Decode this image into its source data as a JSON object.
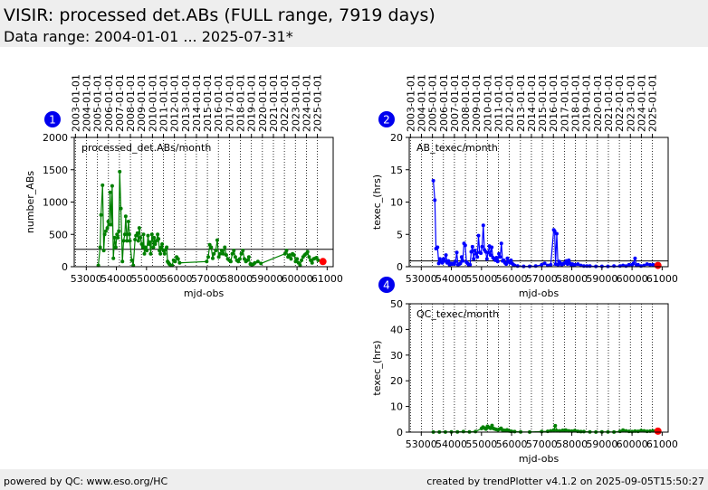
{
  "header": {
    "title": "VISIR: processed det.ABs (FULL range, 7919 days)",
    "subtitle": "Data range: 2004-01-01 ... 2025-07-31*"
  },
  "footer": {
    "left": "powered by QC: www.eso.org/HC",
    "right": "created by trendPlotter v4.1.2 on 2025-09-05T15:50:27"
  },
  "colors": {
    "badge": "#0000ee",
    "processed": "#008000",
    "abtexec": "#0000ff",
    "qctexec": "#008000",
    "latest": "#ff0000",
    "header_bg": "#eeeeee"
  },
  "chart_data": [
    {
      "id": 1,
      "badge": "1",
      "type": "line",
      "label": "processed_det.ABs/month",
      "xlabel": "mjd-obs",
      "ylabel": "number_ABs",
      "xlim": [
        52600,
        61200
      ],
      "ylim": [
        0,
        2000
      ],
      "xticks": [
        53000,
        54000,
        55000,
        56000,
        57000,
        58000,
        59000,
        60000,
        61000
      ],
      "yticks": [
        0,
        500,
        1000,
        1500,
        2000
      ],
      "top_ticks": [
        "2003-01-01",
        "2004-01-01",
        "2005-01-01",
        "2006-01-01",
        "2007-01-01",
        "2008-01-01",
        "2009-01-01",
        "2010-01-01",
        "2011-01-01",
        "2012-01-01",
        "2013-01-01",
        "2014-01-01",
        "2015-01-01",
        "2016-01-01",
        "2017-01-01",
        "2018-01-01",
        "2019-01-01",
        "2020-01-01",
        "2021-01-01",
        "2022-01-01",
        "2023-01-01",
        "2024-01-01",
        "2025-01-01"
      ],
      "top_ticks_mjd": [
        52640,
        53005,
        53371,
        53736,
        54101,
        54466,
        54832,
        55197,
        55562,
        55927,
        56293,
        56658,
        57023,
        57388,
        57754,
        58119,
        58484,
        58849,
        59215,
        59580,
        59945,
        60310,
        60676
      ],
      "hline": 270,
      "series": [
        {
          "x": [
            53400,
            53460,
            53490,
            53540,
            53580,
            53610,
            53650,
            53700,
            53730,
            53760,
            53790,
            53830,
            53860,
            53900,
            53940,
            53980,
            54020,
            54050,
            54080,
            54110,
            54150,
            54200,
            54240,
            54280,
            54310,
            54350,
            54400,
            54430,
            54450,
            54510,
            54560,
            54620,
            54650,
            54700,
            54730,
            54760,
            54800,
            54840,
            54880,
            54900,
            54930,
            54960,
            55010,
            55050,
            55080,
            55110,
            55140,
            55180,
            55230,
            55250,
            55290,
            55330,
            55370,
            55400,
            55430,
            55460,
            55490,
            55520,
            55560,
            55600,
            55630,
            55670,
            55700,
            55730,
            55760,
            55800,
            55850,
            55900,
            55950,
            56000,
            56050,
            56100,
            57000,
            57050,
            57100,
            57150,
            57200,
            57240,
            57300,
            57350,
            57400,
            57450,
            57500,
            57550,
            57600,
            57650,
            57700,
            57750,
            57800,
            57850,
            57900,
            57950,
            58000,
            58050,
            58100,
            58150,
            58200,
            58250,
            58300,
            58350,
            58400,
            58450,
            58500,
            58550,
            58600,
            58700,
            58800,
            59600,
            59650,
            59700,
            59750,
            59800,
            59850,
            59900,
            59950,
            60000,
            60050,
            60100,
            60150,
            60200,
            60250,
            60300,
            60350,
            60400,
            60450,
            60500,
            60550,
            60600,
            60650,
            60700
          ],
          "y": [
            20,
            300,
            800,
            1260,
            250,
            500,
            550,
            600,
            700,
            650,
            1150,
            650,
            1250,
            130,
            450,
            300,
            500,
            450,
            550,
            1470,
            900,
            80,
            400,
            500,
            780,
            400,
            700,
            500,
            400,
            100,
            20,
            420,
            480,
            520,
            400,
            600,
            450,
            350,
            300,
            500,
            200,
            300,
            250,
            480,
            350,
            380,
            200,
            500,
            300,
            450,
            350,
            400,
            500,
            430,
            250,
            200,
            300,
            350,
            250,
            200,
            260,
            300,
            80,
            60,
            40,
            20,
            20,
            100,
            80,
            150,
            120,
            60,
            80,
            150,
            340,
            300,
            130,
            200,
            250,
            410,
            150,
            200,
            250,
            200,
            300,
            180,
            120,
            100,
            80,
            200,
            250,
            150,
            100,
            80,
            120,
            200,
            250,
            120,
            80,
            100,
            150,
            40,
            30,
            40,
            60,
            80,
            50,
            200,
            250,
            150,
            180,
            120,
            200,
            180,
            80,
            120,
            60,
            20,
            100,
            150,
            180,
            200,
            230,
            150,
            100,
            60,
            120,
            130,
            140,
            100
          ],
          "color": "#008000"
        }
      ],
      "latest": [
        60860,
        80
      ]
    },
    {
      "id": 2,
      "badge": "2",
      "type": "line",
      "label": "AB_texec/month",
      "xlabel": "mjd-obs",
      "ylabel": "texec_(hrs)",
      "xlim": [
        52600,
        61200
      ],
      "ylim": [
        0,
        20
      ],
      "xticks": [
        53000,
        54000,
        55000,
        56000,
        57000,
        58000,
        59000,
        60000,
        61000
      ],
      "yticks": [
        0,
        5,
        10,
        15,
        20
      ],
      "top_ticks": [
        "2003-01-01",
        "2004-01-01",
        "2005-01-01",
        "2006-01-01",
        "2007-01-01",
        "2008-01-01",
        "2009-01-01",
        "2010-01-01",
        "2011-01-01",
        "2012-01-01",
        "2013-01-01",
        "2014-01-01",
        "2015-01-01",
        "2016-01-01",
        "2017-01-01",
        "2018-01-01",
        "2019-01-01",
        "2020-01-01",
        "2021-01-01",
        "2022-01-01",
        "2023-01-01",
        "2024-01-01",
        "2025-01-01"
      ],
      "top_ticks_mjd": [
        52640,
        53005,
        53371,
        53736,
        54101,
        54466,
        54832,
        55197,
        55562,
        55927,
        56293,
        56658,
        57023,
        57388,
        57754,
        58119,
        58484,
        58849,
        59215,
        59580,
        59945,
        60310,
        60676
      ],
      "hline": 0.9,
      "series": [
        {
          "x": [
            53400,
            53450,
            53490,
            53540,
            53580,
            53620,
            53660,
            53700,
            53740,
            53780,
            53820,
            53860,
            53900,
            53940,
            53980,
            54020,
            54060,
            54100,
            54140,
            54180,
            54220,
            54260,
            54300,
            54340,
            54380,
            54420,
            54460,
            54500,
            54540,
            54580,
            54620,
            54660,
            54700,
            54740,
            54780,
            54820,
            54860,
            54900,
            54940,
            54980,
            55020,
            55060,
            55100,
            55140,
            55180,
            55220,
            55260,
            55300,
            55340,
            55380,
            55420,
            55460,
            55500,
            55540,
            55580,
            55620,
            55660,
            55700,
            55740,
            55780,
            55820,
            55860,
            55900,
            55940,
            55980,
            56020,
            56060,
            56100,
            56200,
            56400,
            56600,
            56800,
            57000,
            57100,
            57200,
            57300,
            57400,
            57430,
            57460,
            57500,
            57540,
            57580,
            57620,
            57660,
            57700,
            57740,
            57780,
            57820,
            57860,
            57900,
            57940,
            57980,
            58020,
            58060,
            58100,
            58200,
            58300,
            58400,
            58500,
            58600,
            58800,
            59000,
            59200,
            59400,
            59600,
            59700,
            59800,
            59900,
            60000,
            60050,
            60100,
            60150,
            60200,
            60300,
            60400,
            60500,
            60600,
            60700
          ],
          "y": [
            13.3,
            10.3,
            2.8,
            3.0,
            0.5,
            1.2,
            0.8,
            0.6,
            1.2,
            0.9,
            1.8,
            0.6,
            0.9,
            0.3,
            0.5,
            0.4,
            0.5,
            0.4,
            0.8,
            2.2,
            0.3,
            0.4,
            0.5,
            1.5,
            0.9,
            3.6,
            3.3,
            0.7,
            0.5,
            0.2,
            0.3,
            2.3,
            3.1,
            1.2,
            2.5,
            2.0,
            1.5,
            4.8,
            2.2,
            2.1,
            3.1,
            6.4,
            2.6,
            2.3,
            1.2,
            2.2,
            3.2,
            1.8,
            3.0,
            1.4,
            1.2,
            1.0,
            1.4,
            0.8,
            2.0,
            1.5,
            3.6,
            0.9,
            1.0,
            0.6,
            0.4,
            1.3,
            0.8,
            0.6,
            1.0,
            0.5,
            0.3,
            0.2,
            0.1,
            0.05,
            0.05,
            0.1,
            0.3,
            0.5,
            0.2,
            0.3,
            5.7,
            5.5,
            0.4,
            5.1,
            0.3,
            0.8,
            0.5,
            0.3,
            0.4,
            0.5,
            0.6,
            0.9,
            0.4,
            1.0,
            0.5,
            0.3,
            0.4,
            0.2,
            0.3,
            0.4,
            0.2,
            0.1,
            0.1,
            0.1,
            0.05,
            0.05,
            0.05,
            0.1,
            0.1,
            0.2,
            0.1,
            0.3,
            0.3,
            0.5,
            1.3,
            0.2,
            0.3,
            0.1,
            0.2,
            0.4,
            0.3,
            0.3
          ],
          "color": "#0000ff"
        }
      ],
      "latest": [
        60860,
        0.2
      ]
    },
    {
      "id": 4,
      "badge": "4",
      "type": "line",
      "label": "QC_texec/month",
      "xlabel": "mjd-obs",
      "ylabel": "texec_(hrs)",
      "xlim": [
        52600,
        61200
      ],
      "ylim": [
        0,
        50
      ],
      "xticks": [
        53000,
        54000,
        55000,
        56000,
        57000,
        58000,
        59000,
        60000,
        61000
      ],
      "yticks": [
        0,
        10,
        20,
        30,
        40,
        50
      ],
      "top_ticks": [],
      "top_ticks_mjd": [
        52640,
        53005,
        53371,
        53736,
        54101,
        54466,
        54832,
        55197,
        55562,
        55927,
        56293,
        56658,
        57023,
        57388,
        57754,
        58119,
        58484,
        58849,
        59215,
        59580,
        59945,
        60310,
        60676
      ],
      "hline": null,
      "series": [
        {
          "x": [
            53400,
            53600,
            53800,
            54000,
            54200,
            54400,
            54600,
            54800,
            55000,
            55050,
            55100,
            55150,
            55200,
            55250,
            55300,
            55350,
            55400,
            55450,
            55500,
            55550,
            55600,
            55650,
            55700,
            55750,
            55800,
            55850,
            55900,
            55950,
            56000,
            56100,
            56300,
            56600,
            57000,
            57200,
            57300,
            57400,
            57450,
            57500,
            57600,
            57700,
            57800,
            57900,
            58000,
            58100,
            58200,
            58300,
            58400,
            58600,
            58800,
            59000,
            59200,
            59400,
            59600,
            59700,
            59800,
            59900,
            60000,
            60100,
            60200,
            60300,
            60400,
            60500,
            60600,
            60700
          ],
          "y": [
            0.05,
            0.05,
            0.05,
            0.1,
            0.1,
            0.2,
            0.1,
            0.2,
            1.4,
            2.0,
            1.6,
            1.2,
            2.3,
            1.8,
            1.5,
            2.6,
            1.4,
            1.2,
            1.0,
            0.9,
            1.2,
            1.5,
            0.8,
            0.7,
            0.6,
            0.9,
            0.5,
            0.4,
            0.3,
            0.2,
            0.1,
            0.05,
            0.2,
            0.3,
            0.5,
            0.8,
            2.5,
            0.6,
            0.5,
            0.7,
            0.8,
            0.5,
            0.4,
            0.6,
            0.3,
            0.2,
            0.2,
            0.1,
            0.05,
            0.1,
            0.1,
            0.05,
            0.3,
            0.8,
            0.5,
            0.3,
            0.2,
            0.4,
            0.3,
            0.6,
            0.5,
            0.3,
            0.4,
            0.5
          ],
          "color": "#008000"
        }
      ],
      "latest": [
        60860,
        0.4
      ]
    }
  ]
}
